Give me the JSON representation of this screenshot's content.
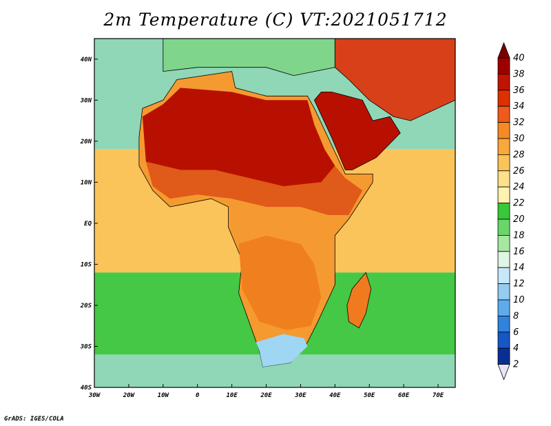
{
  "title": "2m Temperature (C) VT:2021051712",
  "footer": "GrADS: IGES/COLA",
  "map": {
    "lon_labels": [
      "30W",
      "20W",
      "10W",
      "0",
      "10E",
      "20E",
      "30E",
      "40E",
      "50E",
      "60E",
      "70E"
    ],
    "lat_labels": [
      "40N",
      "30N",
      "20N",
      "10N",
      "EQ",
      "10S",
      "20S",
      "30S",
      "40S"
    ]
  },
  "colorbar": {
    "labels": [
      "40",
      "38",
      "36",
      "34",
      "32",
      "30",
      "28",
      "26",
      "24",
      "22",
      "20",
      "18",
      "16",
      "14",
      "12",
      "10",
      "8",
      "6",
      "4",
      "2"
    ],
    "colors": [
      "#9e0000",
      "#c21200",
      "#de3000",
      "#f05a1a",
      "#f58a24",
      "#f9a83a",
      "#fbc45a",
      "#fde08a",
      "#fff3b0",
      "#38c838",
      "#6ad66a",
      "#a6e8a0",
      "#dff6e4",
      "#c6e8fa",
      "#94ccf2",
      "#5eabeb",
      "#2f83dc",
      "#1557c6",
      "#0a2f94",
      "#0a1a6e"
    ],
    "top_arrow_color": "#7a0000",
    "bottom_arrow_color": "#e8e4f8"
  },
  "colors": {
    "ocean_north": "#8fd7b6",
    "ocean_tropics": "#fbc45a",
    "ocean_south": "#45c845",
    "sahara": "#b81000",
    "savanna": "#e05a1a",
    "southern_africa": "#f59a30",
    "cool_south": "#9fd6f3",
    "europe": "#7fd68a"
  }
}
